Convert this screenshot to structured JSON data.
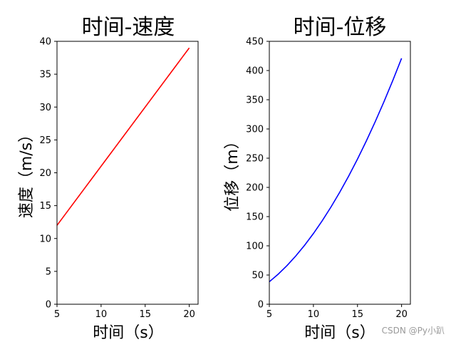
{
  "chart_data": [
    {
      "type": "line",
      "title": "时间-速度",
      "xlabel": "时间（s）",
      "ylabel": "速度（m/s）",
      "xlim": [
        5,
        21
      ],
      "ylim": [
        0,
        40
      ],
      "xticks": [
        "5",
        "10",
        "15",
        "20"
      ],
      "yticks": [
        "0",
        "5",
        "10",
        "15",
        "20",
        "25",
        "30",
        "35",
        "40"
      ],
      "grid": false,
      "series": [
        {
          "color": "#ff0000",
          "x": [
            5,
            20
          ],
          "y": [
            12,
            39
          ]
        }
      ]
    },
    {
      "type": "line",
      "title": "时间-位移",
      "xlabel": "时间（s）",
      "ylabel": "位移（m）",
      "xlim": [
        5,
        21
      ],
      "ylim": [
        0,
        450
      ],
      "xticks": [
        "5",
        "10",
        "15",
        "20"
      ],
      "yticks": [
        "0",
        "50",
        "100",
        "150",
        "200",
        "250",
        "300",
        "350",
        "400",
        "450"
      ],
      "grid": false,
      "series": [
        {
          "color": "#0000ff",
          "x": [
            5,
            6,
            7,
            8,
            9,
            10,
            11,
            12,
            13,
            14,
            15,
            16,
            17,
            18,
            19,
            20
          ],
          "y": [
            38.5,
            51.4,
            66.1,
            82.6,
            100.9,
            121,
            142.9,
            166.6,
            192.1,
            219.4,
            248.5,
            279.4,
            312.1,
            346.6,
            382.9,
            421
          ]
        }
      ]
    }
  ],
  "watermark": "CSDN @Py小趴"
}
